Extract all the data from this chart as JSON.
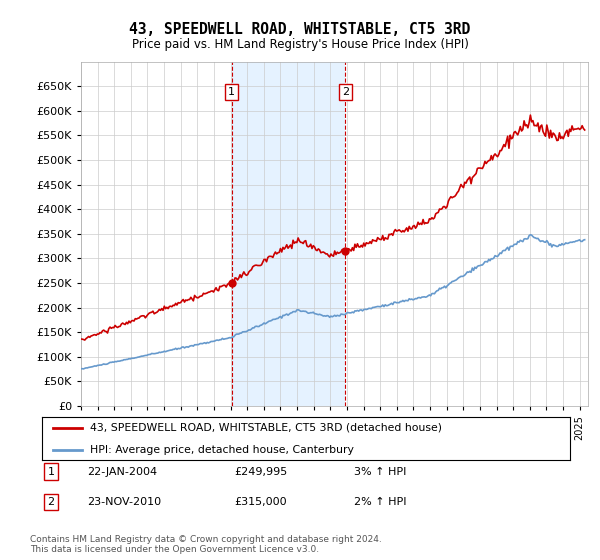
{
  "title": "43, SPEEDWELL ROAD, WHITSTABLE, CT5 3RD",
  "subtitle": "Price paid vs. HM Land Registry's House Price Index (HPI)",
  "ylim": [
    0,
    700000
  ],
  "yticks": [
    0,
    50000,
    100000,
    150000,
    200000,
    250000,
    300000,
    350000,
    400000,
    450000,
    500000,
    550000,
    600000,
    650000
  ],
  "hpi_color": "#6699cc",
  "price_color": "#cc0000",
  "sale1_year": 2004.055,
  "sale1_price": 249995,
  "sale2_year": 2010.9,
  "sale2_price": 315000,
  "legend_line1": "43, SPEEDWELL ROAD, WHITSTABLE, CT5 3RD (detached house)",
  "legend_line2": "HPI: Average price, detached house, Canterbury",
  "annotation1_label": "1",
  "annotation1_date": "22-JAN-2004",
  "annotation1_price": "£249,995",
  "annotation1_hpi": "3% ↑ HPI",
  "annotation2_label": "2",
  "annotation2_date": "23-NOV-2010",
  "annotation2_price": "£315,000",
  "annotation2_hpi": "2% ↑ HPI",
  "footer": "Contains HM Land Registry data © Crown copyright and database right 2024.\nThis data is licensed under the Open Government Licence v3.0.",
  "bg_color": "#ffffff",
  "plot_bg": "#ffffff",
  "grid_color": "#cccccc",
  "shade_color": "#ddeeff"
}
